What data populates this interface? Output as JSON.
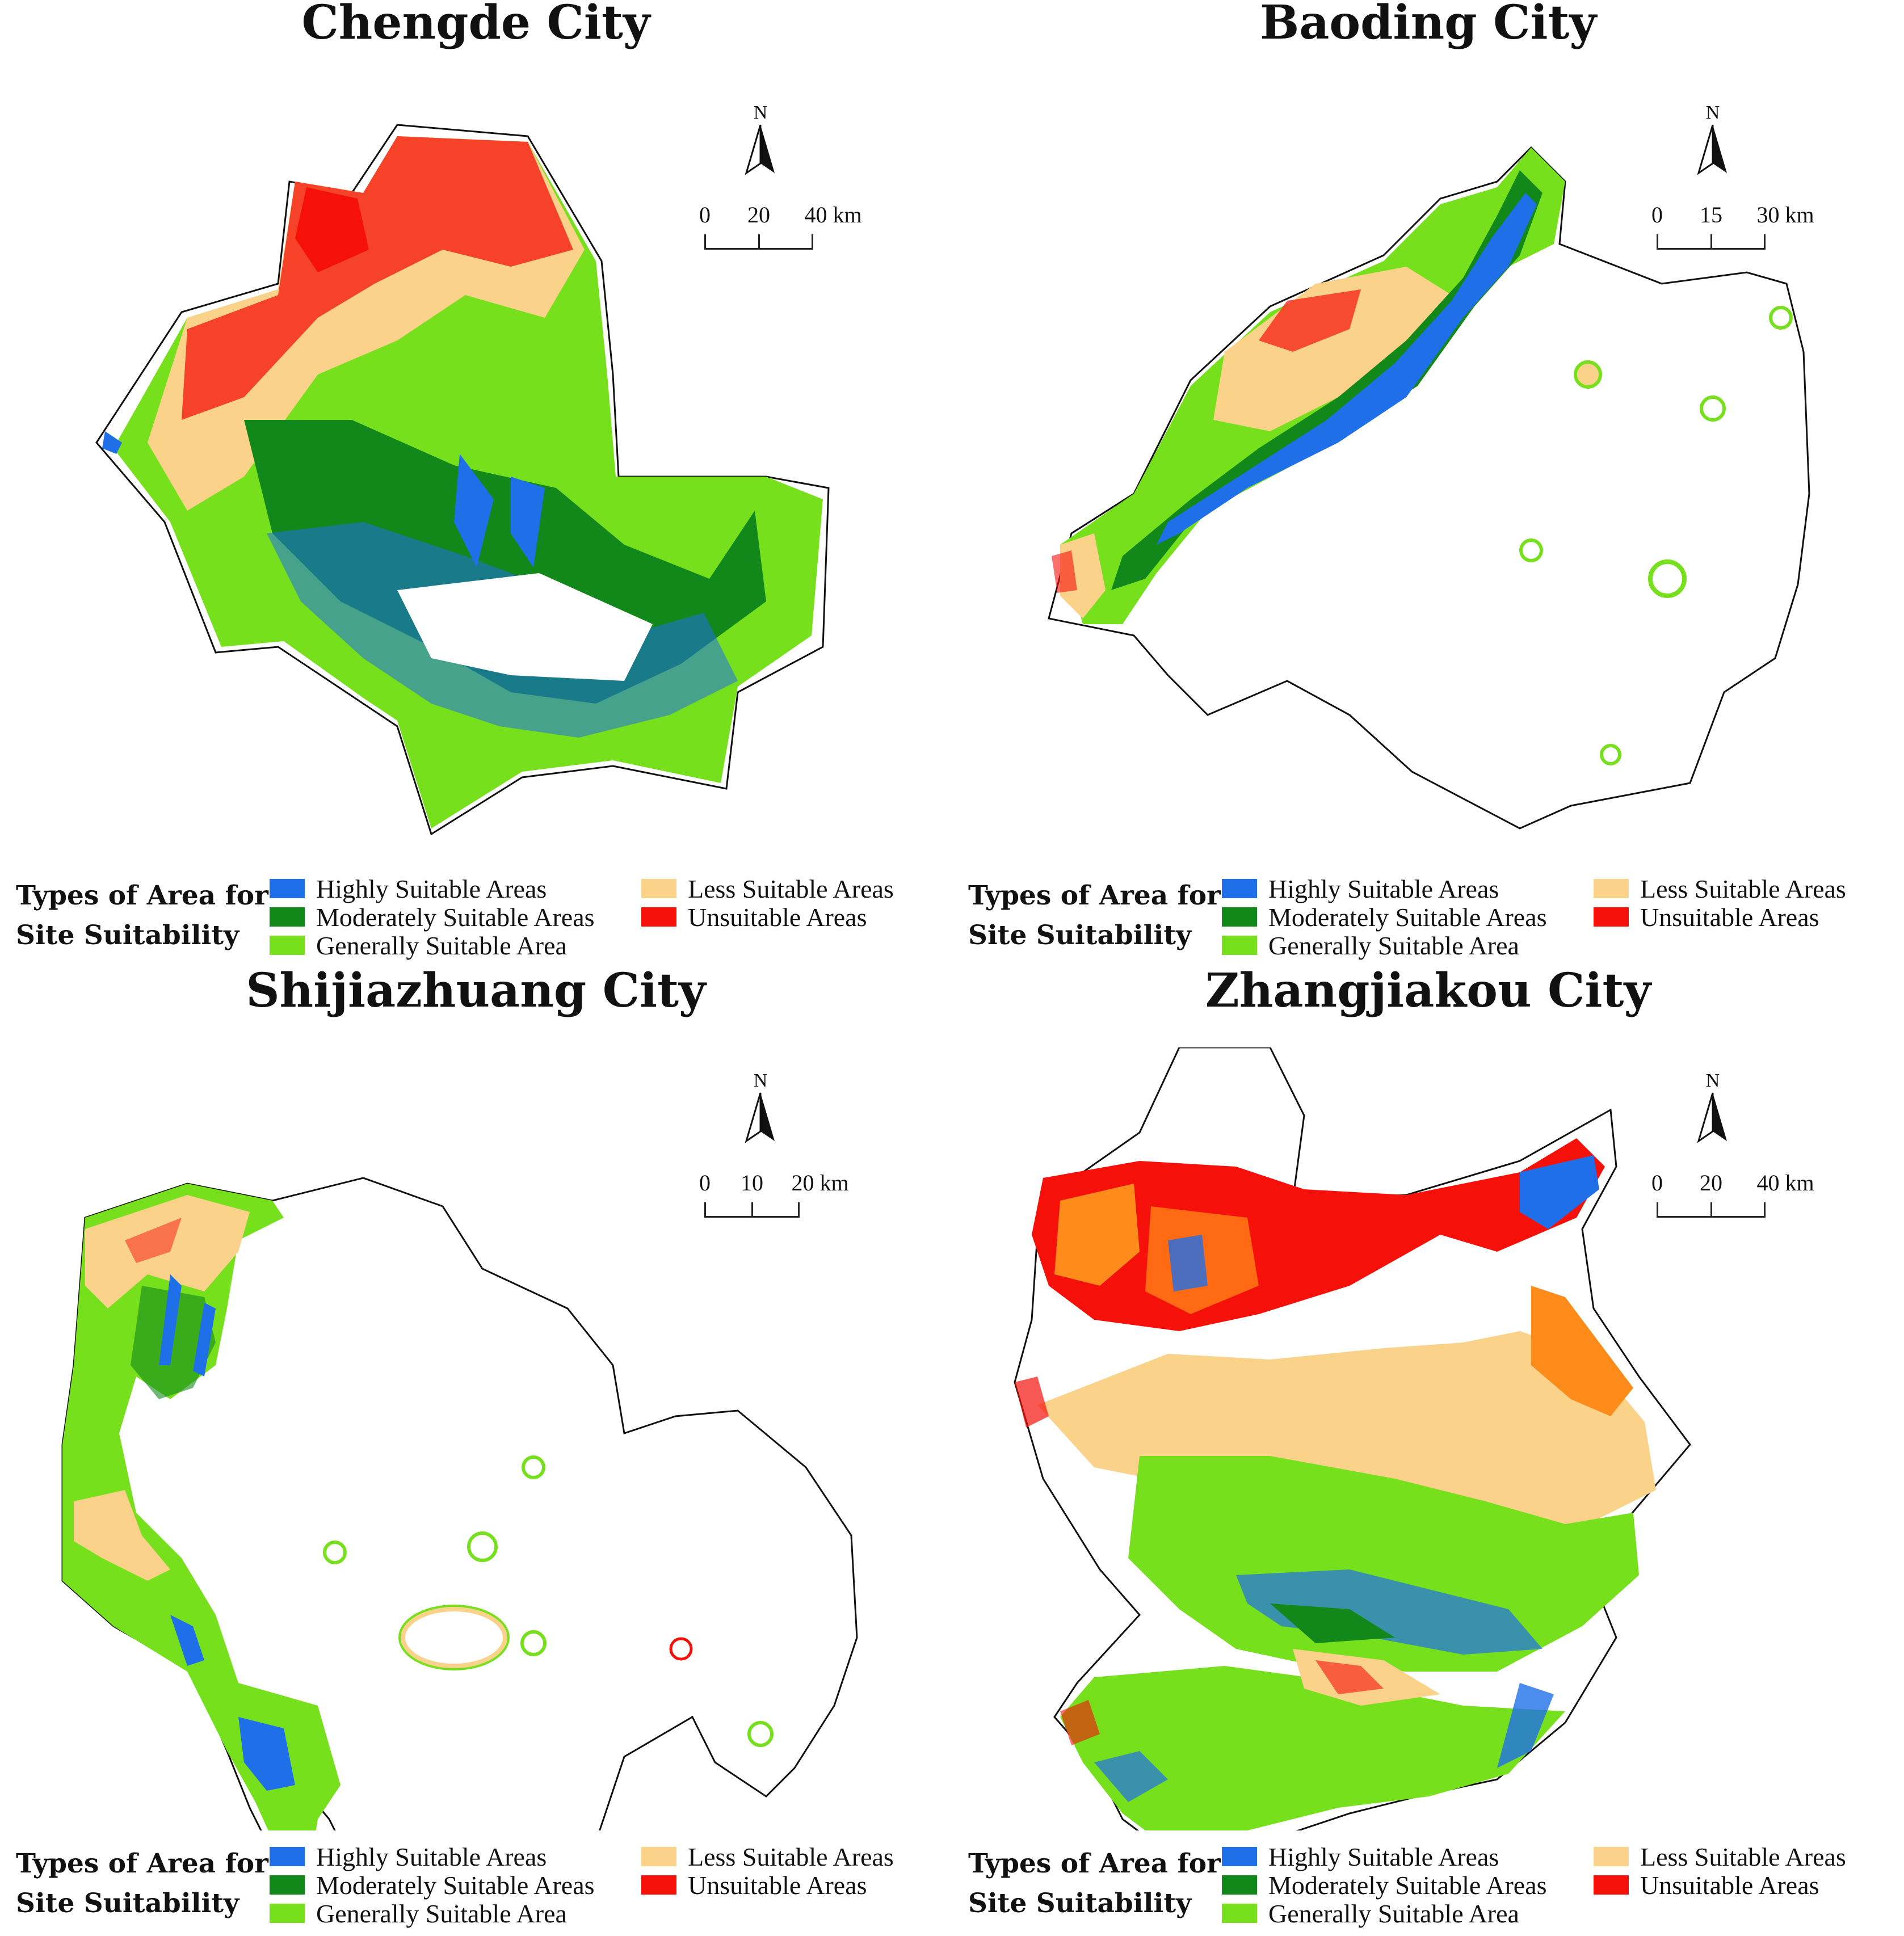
{
  "legend": {
    "title_line1": "Types of Area for",
    "title_line2": "Site Suitability",
    "items": [
      {
        "label": "Highly Suitable Areas",
        "color": "#1f6fe8"
      },
      {
        "label": "Moderately Suitable Areas",
        "color": "#12881a"
      },
      {
        "label": "Generally Suitable Area",
        "color": "#76e01c"
      },
      {
        "label": "Less Suitable Areas",
        "color": "#fbd28a"
      },
      {
        "label": "Unsuitable Areas",
        "color": "#f5110a"
      }
    ]
  },
  "north_label": "N",
  "panels": [
    {
      "title": "Chengde City",
      "scale": {
        "l0": "0",
        "l1": "20",
        "l2": "40 km"
      }
    },
    {
      "title": "Baoding City",
      "scale": {
        "l0": "0",
        "l1": "15",
        "l2": "30 km"
      }
    },
    {
      "title": "Shijiazhuang City",
      "scale": {
        "l0": "0",
        "l1": "10",
        "l2": "20 km"
      }
    },
    {
      "title": "Zhangjiakou City",
      "scale": {
        "l0": "0",
        "l1": "20",
        "l2": "40 km"
      }
    }
  ]
}
